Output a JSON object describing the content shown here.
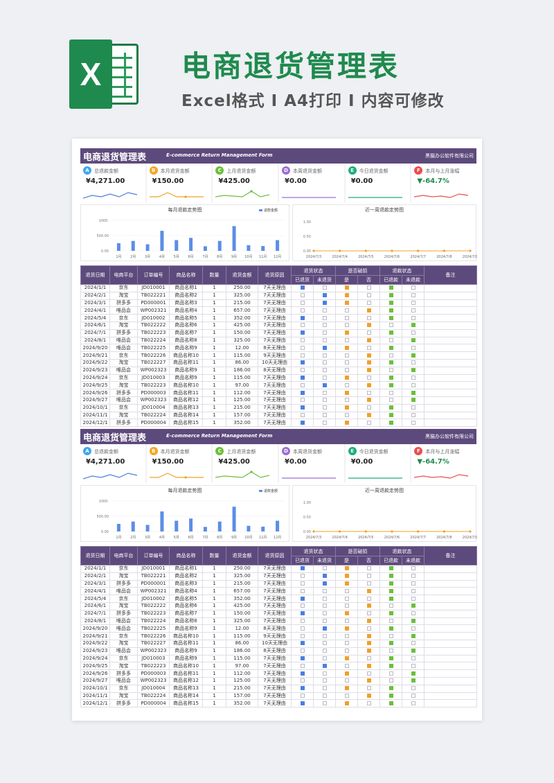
{
  "banner": {
    "logo_letter": "X",
    "title": "电商退货管理表",
    "subtitle": "Excel格式 I A4打印 I 内容可修改"
  },
  "header": {
    "title": "电商退货管理表",
    "title_en": "E-commerce Return Management Form",
    "company": "黑猫办公软件有限公司"
  },
  "kpis": [
    {
      "icon": "A",
      "label": "总退款金额",
      "value": "¥4,271.00",
      "color": "#3fa7f0",
      "line_color": "#4a7fe0"
    },
    {
      "icon": "B",
      "label": "本月退货金额",
      "value": "¥150.00",
      "color": "#f5a623",
      "line_color": "#f0a02a"
    },
    {
      "icon": "C",
      "label": "上月退货金额",
      "value": "¥425.00",
      "color": "#6cbf3a",
      "line_color": "#6cbf3a"
    },
    {
      "icon": "D",
      "label": "本周退货金额",
      "value": "¥0.00",
      "color": "#9b6fd6",
      "line_color": "#9b6fd6"
    },
    {
      "icon": "E",
      "label": "今日退货金额",
      "value": "¥0.00",
      "color": "#1fae7a",
      "line_color": "#1fae7a"
    },
    {
      "icon": "F",
      "label": "本月与上月涨幅",
      "value": "▼-64.7%",
      "color": "#ec4d4d",
      "line_color": "#ec4d4d",
      "value_color": "#1f8a4e"
    }
  ],
  "chart_data": [
    {
      "type": "bar",
      "title": "每月退款走势图",
      "legend": "退款金额",
      "categories": [
        "1月",
        "2月",
        "3月",
        "4月",
        "5月",
        "6月",
        "7月",
        "8月",
        "9月",
        "10月",
        "11月",
        "12月"
      ],
      "series": [
        {
          "name": "退款金额",
          "values": [
            250,
            325,
            215,
            657,
            352,
            425,
            150,
            325,
            812,
            186,
            157,
            352
          ]
        }
      ],
      "ylim": [
        0,
        1000
      ],
      "yticks": [
        "0.00",
        "500.00",
        "1000."
      ]
    },
    {
      "type": "line",
      "title": "近一周退款走势图",
      "categories": [
        "2024/7/3",
        "2024/7/4",
        "2024/7/5",
        "2024/7/6",
        "2024/7/7",
        "2024/7/8",
        "2024/7/9"
      ],
      "series": [
        {
          "name": "",
          "values": [
            0,
            0,
            0,
            0,
            0,
            0,
            0
          ]
        }
      ],
      "ylim": [
        0,
        1
      ],
      "yticks": [
        "0.00",
        "0.50",
        "1.00"
      ]
    }
  ],
  "table": {
    "headers": [
      "退货日期",
      "电商平台",
      "订单编号",
      "商品名称",
      "数量",
      "退货金额",
      "退货原因",
      "退货状态",
      "是否破损",
      "退款状态",
      "备注"
    ],
    "subheaders": [
      "已退货",
      "未退货",
      "是",
      "否",
      "已退款",
      "未退款"
    ],
    "rows": [
      [
        "2024/1/1",
        "京东",
        "JD010001",
        "商品名称1",
        "1",
        "250.00",
        "7天无理由",
        "b",
        "",
        "o",
        "",
        "g",
        ""
      ],
      [
        "2024/2/1",
        "淘宝",
        "TB022221",
        "商品名称2",
        "1",
        "325.00",
        "7天无理由",
        "",
        "b",
        "o",
        "",
        "g",
        ""
      ],
      [
        "2024/3/1",
        "拼多多",
        "PD000001",
        "商品名称3",
        "1",
        "215.00",
        "7天无理由",
        "",
        "b",
        "o",
        "",
        "g",
        ""
      ],
      [
        "2024/4/1",
        "唯品会",
        "WP002321",
        "商品名称4",
        "1",
        "657.00",
        "7天无理由",
        "",
        "",
        "",
        "o",
        "g",
        ""
      ],
      [
        "2024/5/4",
        "京东",
        "JD010002",
        "商品名称5",
        "1",
        "352.00",
        "7天无理由",
        "b",
        "",
        "",
        "",
        "g",
        ""
      ],
      [
        "2024/6/1",
        "淘宝",
        "TB022222",
        "商品名称6",
        "1",
        "425.00",
        "7天无理由",
        "",
        "",
        "",
        "o",
        "",
        "g"
      ],
      [
        "2024/7/1",
        "拼多多",
        "TB022223",
        "商品名称7",
        "1",
        "150.00",
        "7天无理由",
        "b",
        "",
        "o",
        "",
        "g",
        ""
      ],
      [
        "2024/8/1",
        "唯品会",
        "TB022224",
        "商品名称8",
        "1",
        "325.00",
        "7天无理由",
        "",
        "",
        "",
        "o",
        "",
        "g"
      ],
      [
        "2024/9/20",
        "唯品会",
        "TB022225",
        "商品名称9",
        "1",
        "12.00",
        "8天无理由",
        "",
        "b",
        "o",
        "",
        "g",
        ""
      ],
      [
        "2024/9/21",
        "京东",
        "TB022226",
        "商品名称10",
        "1",
        "115.00",
        "9天无理由",
        "",
        "",
        "",
        "o",
        "",
        "g"
      ],
      [
        "2024/9/22",
        "淘宝",
        "TB022227",
        "商品名称11",
        "1",
        "86.00",
        "10天无理由",
        "b",
        "",
        "",
        "o",
        "g",
        ""
      ],
      [
        "2024/9/23",
        "唯品会",
        "WP002323",
        "商品名称9",
        "1",
        "186.00",
        "8天无理由",
        "",
        "",
        "",
        "o",
        "",
        "g"
      ],
      [
        "2024/9/24",
        "京东",
        "JD010003",
        "商品名称9",
        "1",
        "115.00",
        "7天无理由",
        "b",
        "",
        "o",
        "",
        "g",
        ""
      ],
      [
        "2024/9/25",
        "淘宝",
        "TB022223",
        "商品名称10",
        "1",
        "97.00",
        "7天无理由",
        "",
        "b",
        "",
        "o",
        "g",
        ""
      ],
      [
        "2024/9/26",
        "拼多多",
        "PD000003",
        "商品名称11",
        "1",
        "112.00",
        "7天无理由",
        "b",
        "",
        "o",
        "",
        "",
        "g"
      ],
      [
        "2024/9/27",
        "唯品会",
        "WP002323",
        "商品名称12",
        "1",
        "125.00",
        "7天无理由",
        "",
        "",
        "",
        "o",
        "",
        "g"
      ],
      [
        "2024/10/1",
        "京东",
        "JD010004",
        "商品名称13",
        "1",
        "215.00",
        "7天无理由",
        "b",
        "",
        "o",
        "",
        "g",
        ""
      ],
      [
        "2024/11/1",
        "淘宝",
        "TB022224",
        "商品名称14",
        "1",
        "157.00",
        "7天无理由",
        "",
        "",
        "",
        "o",
        "g",
        ""
      ],
      [
        "2024/12/1",
        "拼多多",
        "PD000004",
        "商品名称15",
        "1",
        "352.00",
        "7天无理由",
        "b",
        "",
        "o",
        "",
        "g",
        ""
      ]
    ]
  }
}
